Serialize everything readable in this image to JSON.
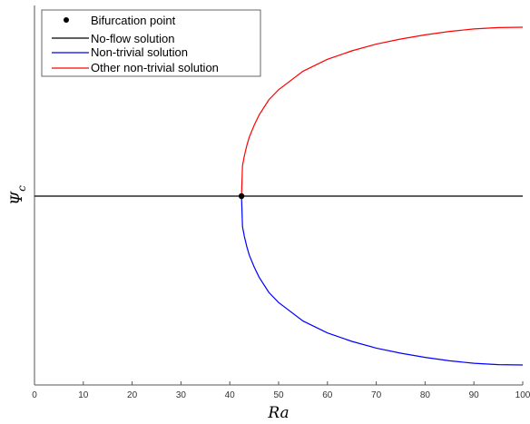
{
  "chart_data": {
    "type": "line",
    "xlabel": "Ra",
    "ylabel": "Ψ",
    "ylabel_subscript": "c",
    "xlim": [
      0,
      100
    ],
    "ylim": [
      -1,
      1
    ],
    "xticks": [
      0,
      10,
      20,
      30,
      40,
      50,
      60,
      70,
      80,
      90,
      100
    ],
    "yticks": [],
    "grid": false,
    "legend_position": "top-left",
    "bifurcation_point": {
      "name": "Bifurcation point",
      "x": 42.4,
      "y": 0,
      "color": "#000000"
    },
    "series": [
      {
        "name": "No-flow solution",
        "color": "#000000",
        "x": [
          0,
          100
        ],
        "y": [
          0,
          0
        ]
      },
      {
        "name": "Non-trivial solution",
        "color": "#0000ff",
        "x": [
          42.4,
          42.6,
          43,
          43.5,
          44,
          45,
          46,
          48,
          50,
          55,
          60,
          65,
          70,
          75,
          80,
          85,
          90,
          95,
          100
        ],
        "y": [
          0,
          -0.18,
          -0.24,
          -0.3,
          -0.35,
          -0.42,
          -0.48,
          -0.57,
          -0.63,
          -0.74,
          -0.81,
          -0.86,
          -0.9,
          -0.93,
          -0.955,
          -0.975,
          -0.99,
          -0.998,
          -1.0
        ]
      },
      {
        "name": "Other non-trivial solution",
        "color": "#ff0000",
        "x": [
          42.4,
          42.6,
          43,
          43.5,
          44,
          45,
          46,
          48,
          50,
          55,
          60,
          65,
          70,
          75,
          80,
          85,
          90,
          95,
          100
        ],
        "y": [
          0,
          0.18,
          0.24,
          0.3,
          0.35,
          0.42,
          0.48,
          0.57,
          0.63,
          0.74,
          0.81,
          0.86,
          0.9,
          0.93,
          0.955,
          0.975,
          0.99,
          0.998,
          1.0
        ]
      }
    ]
  }
}
